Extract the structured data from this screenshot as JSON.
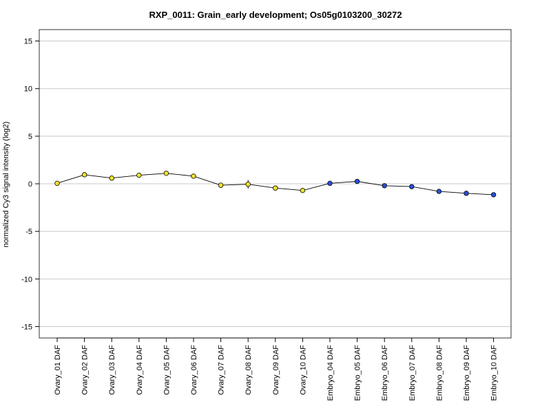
{
  "chart_data": {
    "type": "line",
    "title": "RXP_0011: Grain_early development; Os05g0103200_30272",
    "xlabel": "",
    "ylabel": "normalized Cy3 signal intensity (log2)",
    "ylim": [
      -16.2,
      16.2
    ],
    "yticks": [
      15,
      10,
      5,
      0,
      -5,
      -10,
      -15
    ],
    "grid": true,
    "categories": [
      "Ovary_01 DAF",
      "Ovary_02 DAF",
      "Ovary_03 DAF",
      "Ovary_04 DAF",
      "Ovary_05 DAF",
      "Ovary_06 DAF",
      "Ovary_07 DAF",
      "Ovary_08 DAF",
      "Ovary_09 DAF",
      "Ovary_10 DAF",
      "Embryo_04 DAF",
      "Embryo_05 DAF",
      "Embryo_06 DAF",
      "Embryo_07 DAF",
      "Embryo_08 DAF",
      "Embryo_09 DAF",
      "Embryo_10 DAF"
    ],
    "values": [
      0.05,
      0.95,
      0.6,
      0.9,
      1.1,
      0.8,
      -0.15,
      -0.05,
      -0.45,
      -0.7,
      0.05,
      0.25,
      -0.2,
      -0.3,
      -0.8,
      -1.0,
      -1.15
    ],
    "errors": [
      0.1,
      0.15,
      0.1,
      0.15,
      0.2,
      0.15,
      0.15,
      0.45,
      0.15,
      0.15,
      0.1,
      0.1,
      0.15,
      0.1,
      0.1,
      0.1,
      0.1
    ],
    "point_colors": [
      "#f2e22a",
      "#f2e22a",
      "#f2e22a",
      "#f2e22a",
      "#f2e22a",
      "#f2e22a",
      "#f2e22a",
      "#f2e22a",
      "#f2e22a",
      "#f2e22a",
      "#2b4fd6",
      "#2b4fd6",
      "#2b4fd6",
      "#2b4fd6",
      "#2b4fd6",
      "#2b4fd6",
      "#2b4fd6"
    ]
  }
}
